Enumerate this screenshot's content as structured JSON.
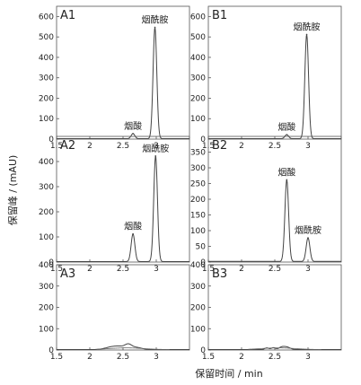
{
  "figure": {
    "ylabel": "保留峰 / (mAU)",
    "xlabel": "保留时间 / min"
  },
  "chart_data": [
    {
      "type": "line",
      "panel": "A1",
      "xlim": [
        1.5,
        3.5
      ],
      "ylim": [
        0,
        650
      ],
      "xticks": [
        "1.5",
        "2",
        "2.5",
        "3"
      ],
      "yticks": [
        "0",
        "100",
        "200",
        "300",
        "400",
        "500",
        "600"
      ],
      "peaks": [
        {
          "name": "烟酸",
          "x": 2.65,
          "height": 25
        },
        {
          "name": "烟酰胺",
          "x": 2.98,
          "height": 545
        }
      ]
    },
    {
      "type": "line",
      "panel": "B1",
      "xlim": [
        1.5,
        3.5
      ],
      "ylim": [
        0,
        650
      ],
      "xticks": [
        "1.5",
        "2",
        "2.5",
        "3"
      ],
      "yticks": [
        "0",
        "100",
        "200",
        "300",
        "400",
        "500",
        "600"
      ],
      "peaks": [
        {
          "name": "烟酸",
          "x": 2.68,
          "height": 20
        },
        {
          "name": "烟酰胺",
          "x": 2.98,
          "height": 510
        }
      ]
    },
    {
      "type": "line",
      "panel": "A2",
      "xlim": [
        1.5,
        3.5
      ],
      "ylim": [
        0,
        500
      ],
      "xticks": [
        "1.5",
        "2",
        "2.5",
        "3"
      ],
      "yticks": [
        "0",
        "100",
        "200",
        "300",
        "400"
      ],
      "peaks": [
        {
          "name": "烟酸",
          "x": 2.65,
          "height": 110
        },
        {
          "name": "烟酰胺",
          "x": 2.99,
          "height": 420
        }
      ]
    },
    {
      "type": "line",
      "panel": "B2",
      "xlim": [
        1.5,
        3.5
      ],
      "ylim": [
        0,
        400
      ],
      "xticks": [
        "1.5",
        "2",
        "2.5",
        "3"
      ],
      "yticks": [
        "0",
        "50",
        "100",
        "150",
        "200",
        "250",
        "300",
        "350"
      ],
      "peaks": [
        {
          "name": "烟酸",
          "x": 2.68,
          "height": 260
        },
        {
          "name": "烟酰胺",
          "x": 3.0,
          "height": 75
        }
      ]
    },
    {
      "type": "line",
      "panel": "A3",
      "xlim": [
        1.5,
        3.5
      ],
      "ylim": [
        0,
        400
      ],
      "xticks": [
        "1.5",
        "2",
        "2.5",
        "3"
      ],
      "yticks": [
        "0",
        "100",
        "200",
        "300",
        "400"
      ],
      "peaks": []
    },
    {
      "type": "line",
      "panel": "B3",
      "xlim": [
        1.5,
        3.5
      ],
      "ylim": [
        0,
        400
      ],
      "xticks": [
        "1.5",
        "2",
        "2.5",
        "3"
      ],
      "yticks": [
        "0",
        "100",
        "200",
        "300",
        "400"
      ],
      "peaks": []
    }
  ]
}
